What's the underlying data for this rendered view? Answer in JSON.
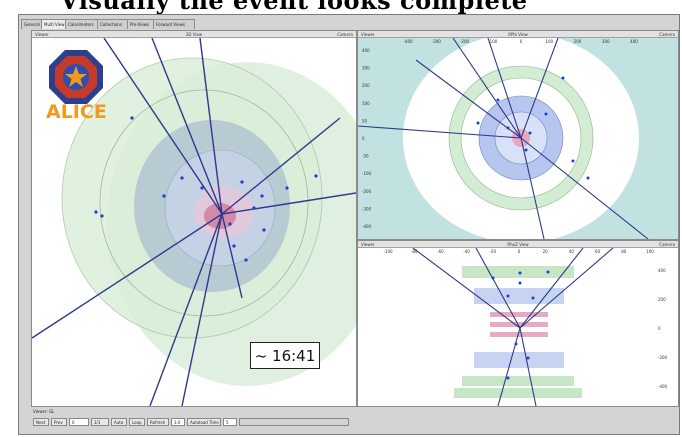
{
  "banner": {
    "text": "Visually the event looks complete"
  },
  "tabs": [
    {
      "label": "General"
    },
    {
      "label": "Multi View"
    },
    {
      "label": "Calorimeters"
    },
    {
      "label": "Collections"
    },
    {
      "label": "Pre-Views"
    },
    {
      "label": "Forward Views"
    }
  ],
  "views": {
    "main": {
      "left": "Viewer",
      "center": "3D View",
      "right": "Camera"
    },
    "rphi": {
      "left": "Viewer",
      "center": "RPhi View",
      "right": "Camera"
    },
    "rhoz": {
      "left": "Viewer",
      "center": "RhoZ View",
      "right": "Camera"
    }
  },
  "axes": {
    "rphi_top": [
      "-400",
      "-300",
      "-200",
      "-100",
      "0",
      "100",
      "200",
      "300",
      "400"
    ],
    "rphi_side": [
      "400",
      "300",
      "200",
      "100",
      "50",
      "0",
      "-50",
      "-100",
      "-200",
      "-300",
      "-400"
    ],
    "rhoz_top": [
      "-100",
      "-80",
      "-60",
      "-40",
      "-20",
      "0",
      "20",
      "40",
      "60",
      "80",
      "100"
    ],
    "rhoz_side": [
      "400",
      "200",
      "0",
      "-200",
      "-400"
    ]
  },
  "logo": {
    "text": "ALICE"
  },
  "clock": {
    "text": "~ 16:41"
  },
  "status": {
    "label": "Viewer: GL",
    "controls": [
      {
        "label": "Next"
      },
      {
        "label": "Prev"
      },
      {
        "label": "0"
      },
      {
        "label": "1/1"
      },
      {
        "label": "Auto"
      },
      {
        "label": "Loop"
      },
      {
        "label": "Refresh"
      },
      {
        "label": "3.0"
      },
      {
        "label": "Autoload Time"
      },
      {
        "label": "5"
      }
    ]
  },
  "colors": {
    "track": "#2e3a8c",
    "hit": "#1b3fd6",
    "detector_green": "#c6e6c6",
    "detector_blue": "#a6b8e6",
    "teal": "#8fc8c8"
  }
}
